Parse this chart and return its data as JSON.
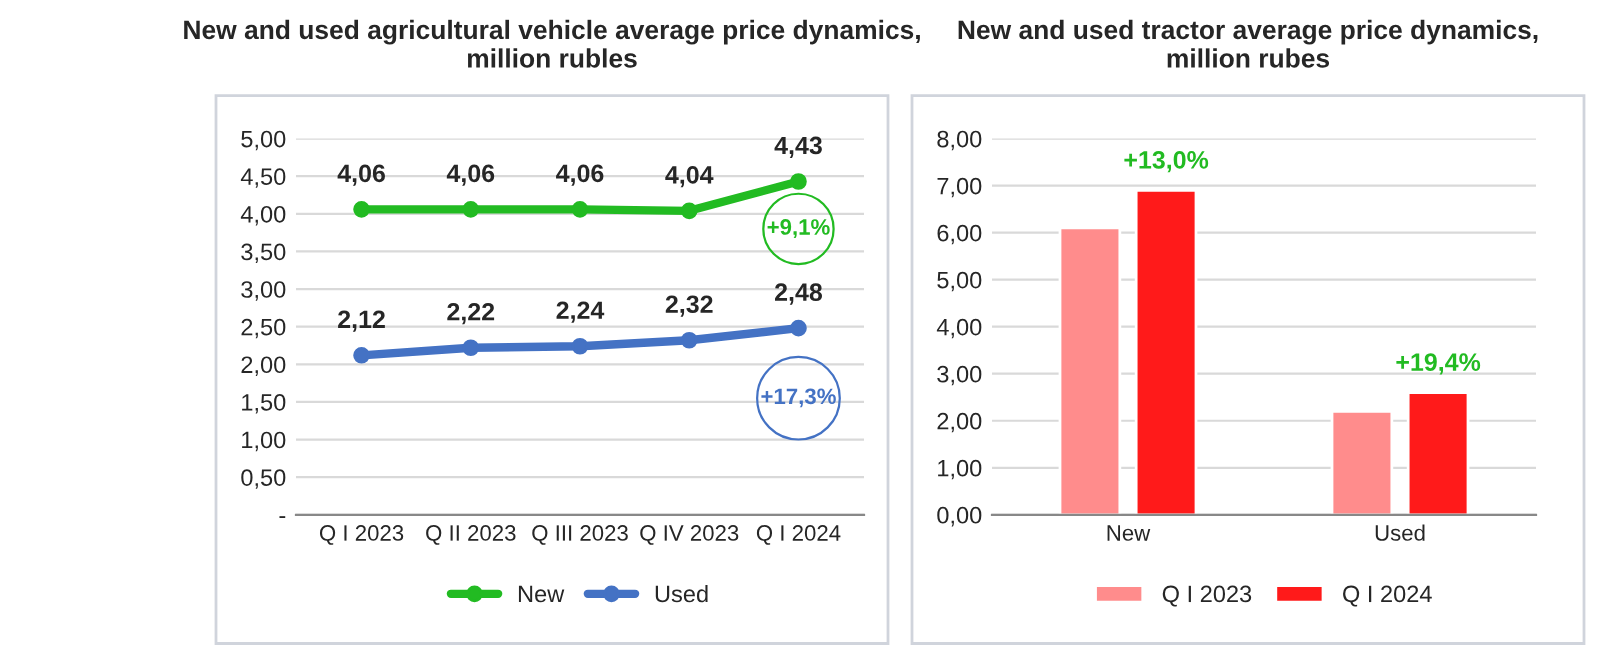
{
  "chart_data": [
    {
      "type": "line",
      "title": "New and used agricultural vehicle average price dynamics,\nmillion rubles",
      "categories": [
        "Q I 2023",
        "Q II 2023",
        "Q III 2023",
        "Q IV 2023",
        "Q I 2024"
      ],
      "series": [
        {
          "name": "New",
          "color": "#22bb22",
          "values": [
            4.06,
            4.06,
            4.06,
            4.04,
            4.43
          ],
          "value_labels": [
            "4,06",
            "4,06",
            "4,06",
            "4,04",
            "4,43"
          ]
        },
        {
          "name": "Used",
          "color": "#4472c4",
          "values": [
            2.12,
            2.22,
            2.24,
            2.32,
            2.48
          ],
          "value_labels": [
            "2,12",
            "2,22",
            "2,24",
            "2,32",
            "2,48"
          ]
        }
      ],
      "ylim": [
        0,
        5
      ],
      "yticks": [
        {
          "value": 0,
          "label": "-"
        },
        {
          "value": 0.5,
          "label": "0,50"
        },
        {
          "value": 1,
          "label": "1,00"
        },
        {
          "value": 1.5,
          "label": "1,50"
        },
        {
          "value": 2,
          "label": "2,00"
        },
        {
          "value": 2.5,
          "label": "2,50"
        },
        {
          "value": 3,
          "label": "3,00"
        },
        {
          "value": 3.5,
          "label": "3,50"
        },
        {
          "value": 4,
          "label": "4,00"
        },
        {
          "value": 4.5,
          "label": "4,50"
        },
        {
          "value": 5,
          "label": "5,00"
        }
      ],
      "annotations": [
        "+9,1%",
        "+17,3%"
      ],
      "grid": "y",
      "legend": "bottom",
      "marker": "circle",
      "line_style": "solid"
    },
    {
      "type": "bar",
      "title": "New and used tractor average price dynamics,\nmillion rubes",
      "categories": [
        "New",
        "Used"
      ],
      "series": [
        {
          "name": "Q I 2023",
          "color": "#ff8c8c",
          "values": [
            6.1,
            2.2
          ]
        },
        {
          "name": "Q I 2024",
          "color": "#ff1a1a",
          "values": [
            6.9,
            2.6
          ]
        }
      ],
      "ylim": [
        0,
        8
      ],
      "yticks": [
        {
          "value": 0,
          "label": "0,00"
        },
        {
          "value": 1,
          "label": "1,00"
        },
        {
          "value": 2,
          "label": "2,00"
        },
        {
          "value": 3,
          "label": "3,00"
        },
        {
          "value": 4,
          "label": "4,00"
        },
        {
          "value": 5,
          "label": "5,00"
        },
        {
          "value": 6,
          "label": "6,00"
        },
        {
          "value": 7,
          "label": "7,00"
        },
        {
          "value": 8,
          "label": "8,00"
        }
      ],
      "annotations": [
        "+13,0%",
        "+19,4%"
      ],
      "grid": "y",
      "legend": "bottom"
    }
  ]
}
